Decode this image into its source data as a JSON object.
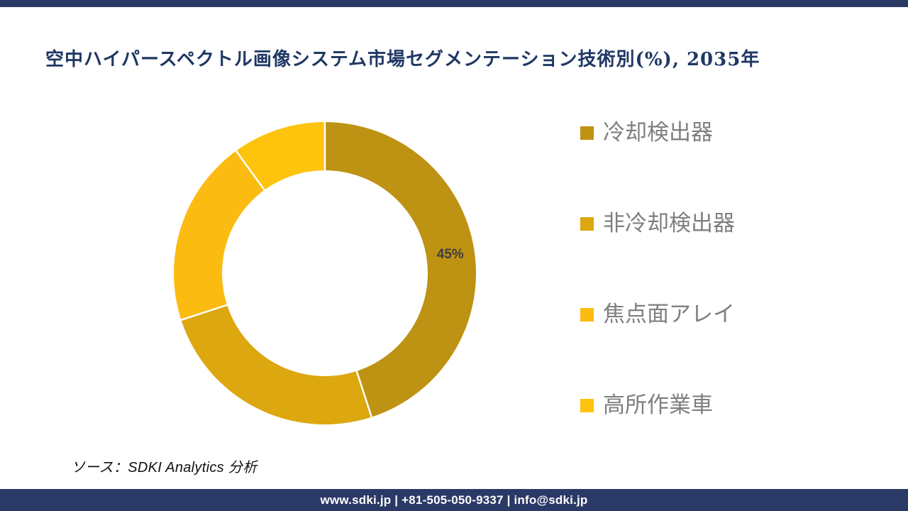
{
  "page": {
    "background": "#ffffff",
    "accent_navy": "#2B3966"
  },
  "header": {
    "title": "空中ハイパースペクトル画像システム市場セグメンテーション技術別(%), 2035年",
    "color": "#1F3864"
  },
  "chart_data": {
    "type": "pie",
    "subtype": "donut",
    "title": "空中ハイパースペクトル画像システム市場セグメンテーション技術別(%), 2035年",
    "categories": [
      "冷却検出器",
      "非冷却検出器",
      "焦点面アレイ",
      "高所作業車"
    ],
    "values": [
      45,
      25,
      20,
      10
    ],
    "unit": "%",
    "colors": [
      "#BE9212",
      "#DCA70F",
      "#FBBB10",
      "#FEC40D"
    ],
    "start_angle_deg": 0,
    "inner_radius_ratio": 0.68,
    "separator_color": "#ffffff",
    "legend_position": "right",
    "shown_label": {
      "text": "45%",
      "segment_index": 0,
      "color": "#3F3F3F"
    }
  },
  "legend": {
    "text_color": "#7F7F7F",
    "items": [
      {
        "label": "冷却検出器",
        "color": "#BE9212"
      },
      {
        "label": "非冷却検出器",
        "color": "#DCA70F"
      },
      {
        "label": "焦点面アレイ",
        "color": "#FBBB10"
      },
      {
        "label": "高所作業車",
        "color": "#FEC40D"
      }
    ]
  },
  "source": {
    "text": "ソース：SDKI Analytics 分析"
  },
  "footer": {
    "text": "www.sdki.jp | +81-505-050-9337 | info@sdki.jp",
    "background": "#2B3966"
  }
}
